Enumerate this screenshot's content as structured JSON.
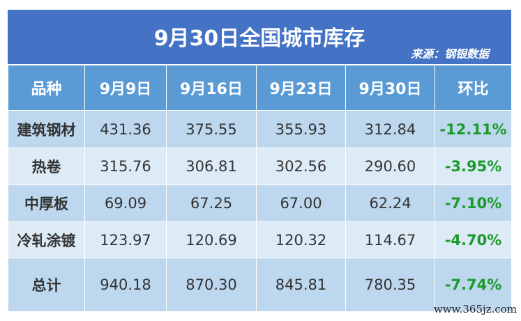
{
  "title": "9月30日全国城市库存",
  "source": "来源：钢银数据",
  "headers": [
    "品种",
    "9月9日",
    "9月16日",
    "9月23日",
    "9月30日",
    "环比"
  ],
  "rows": [
    {
      "name": "建筑钢材",
      "values": [
        "431.36",
        "375.55",
        "355.93",
        "312.84"
      ],
      "change": "-12.11%"
    },
    {
      "name": "热卷",
      "values": [
        "315.76",
        "306.81",
        "302.56",
        "290.60"
      ],
      "change": "-3.95%"
    },
    {
      "name": "中厚板",
      "values": [
        "69.09",
        "67.25",
        "67.00",
        "62.24"
      ],
      "change": "-7.10%"
    },
    {
      "name": "冷轧涂镀",
      "values": [
        "123.97",
        "120.69",
        "120.32",
        "114.67"
      ],
      "change": "-4.70%"
    },
    {
      "name": "总计",
      "values": [
        "940.18",
        "870.30",
        "845.81",
        "780.35"
      ],
      "change": "-7.74%"
    }
  ],
  "watermark": "www.365jz.com",
  "colors": {
    "title_bg": "#4472c4",
    "header_bg": "#5b9bd5",
    "row_dark": "#bdd7ee",
    "row_light": "#ddebf7",
    "change": "#1a9a2a"
  }
}
